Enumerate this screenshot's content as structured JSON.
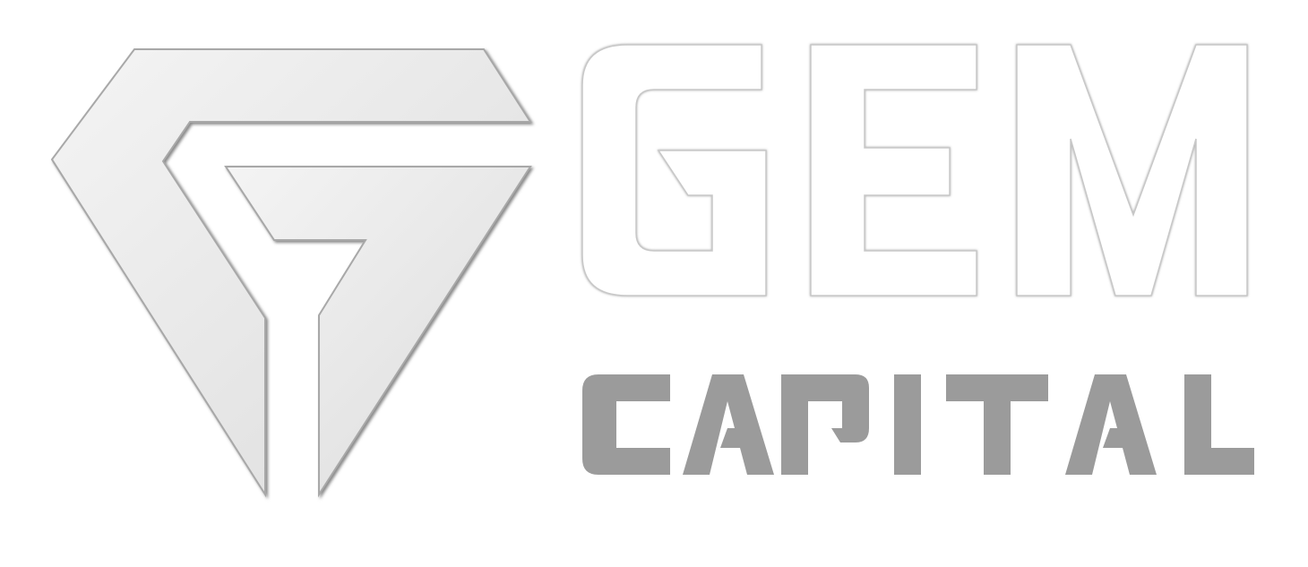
{
  "logo": {
    "word_primary": "GEM",
    "word_secondary": "CAPITAL",
    "mark": "gem-g-diamond-icon",
    "colors": {
      "emblem_light": "#f2f2f2",
      "emblem_mid": "#e2e2e2",
      "emblem_shadow": "#9a9a9a",
      "gem_letters_fill": "#ffffff",
      "gem_letters_outline": "#c8c8c8",
      "capital_letters": "#9b9b9b",
      "background": "#ffffff"
    }
  }
}
